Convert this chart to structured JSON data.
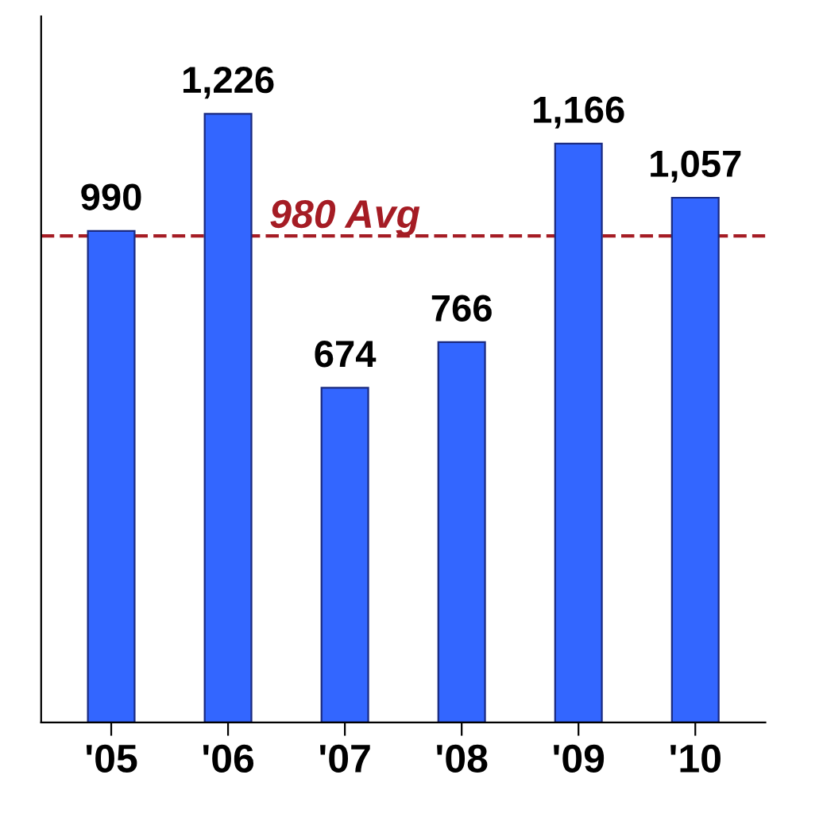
{
  "chart_data": {
    "type": "bar",
    "categories": [
      "'05",
      "'06",
      "'07",
      "'08",
      "'09",
      "'10"
    ],
    "values": [
      990,
      1226,
      674,
      766,
      1166,
      1057
    ],
    "value_labels": [
      "990",
      "1,226",
      "674",
      "766",
      "1,166",
      "1,057"
    ],
    "color": "#3366ff",
    "ref_lines": [
      {
        "axis": "y",
        "value": 980,
        "label": "980 Avg",
        "color": "#a51c24",
        "line_style": "dashed"
      }
    ],
    "tick_labels": "x"
  }
}
